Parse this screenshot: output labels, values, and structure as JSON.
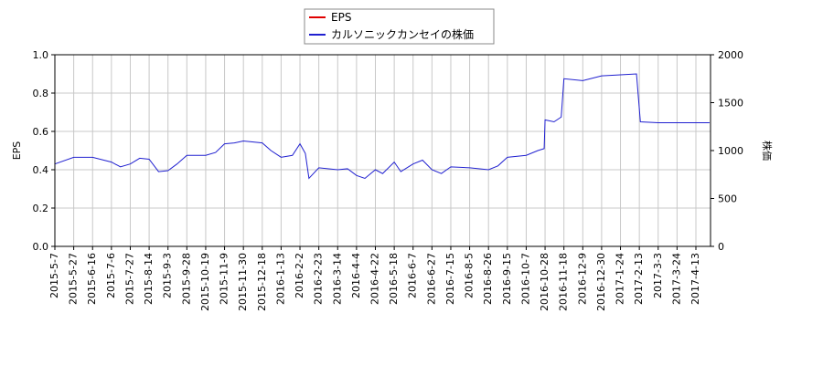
{
  "chart_data": {
    "type": "line",
    "x": [
      "2015-5-7",
      "2015-5-27",
      "2015-6-16",
      "2015-7-6",
      "2015-7-16",
      "2015-7-27",
      "2015-8-5",
      "2015-8-14",
      "2015-8-24",
      "2015-9-3",
      "2015-9-15",
      "2015-9-28",
      "2015-10-19",
      "2015-10-30",
      "2015-11-9",
      "2015-11-20",
      "2015-11-30",
      "2015-12-18",
      "2015-12-30",
      "2016-1-13",
      "2016-1-25",
      "2016-2-2",
      "2016-2-8",
      "2016-2-12",
      "2016-2-23",
      "2016-3-14",
      "2016-3-25",
      "2016-4-4",
      "2016-4-12",
      "2016-4-22",
      "2016-5-2",
      "2016-5-18",
      "2016-5-25",
      "2016-6-7",
      "2016-6-17",
      "2016-6-27",
      "2016-7-6",
      "2016-7-15",
      "2016-8-5",
      "2016-8-26",
      "2016-9-5",
      "2016-9-15",
      "2016-10-7",
      "2016-10-20",
      "2016-10-27",
      "2016-10-28",
      "2016-11-7",
      "2016-11-15",
      "2016-11-18",
      "2016-12-9",
      "2016-12-30",
      "2017-1-24",
      "2017-2-10",
      "2017-2-14",
      "2017-3-3",
      "2017-3-24",
      "2017-4-13",
      "2017-4-27"
    ],
    "series": [
      {
        "name": "EPS",
        "color": "#e00000",
        "values": [
          null,
          null,
          null,
          null,
          null,
          null,
          null,
          null,
          null,
          null,
          null,
          null,
          null,
          null,
          null,
          null,
          null,
          null,
          null,
          null,
          null,
          null,
          null,
          null,
          null,
          null,
          null,
          null,
          null,
          null,
          null,
          null,
          null,
          null,
          null,
          null,
          null,
          null,
          null,
          null,
          null,
          null,
          null,
          null,
          null,
          null,
          null,
          null,
          null,
          null,
          null,
          null,
          null,
          null,
          null,
          null,
          null,
          null
        ]
      },
      {
        "name": "カルソニックカンセイの株価",
        "color": "#2020d0",
        "axis": "y2",
        "values": [
          860,
          930,
          930,
          880,
          830,
          860,
          920,
          910,
          780,
          790,
          860,
          950,
          950,
          980,
          1070,
          1080,
          1100,
          1080,
          1000,
          930,
          950,
          1070,
          970,
          710,
          820,
          800,
          810,
          740,
          710,
          800,
          760,
          880,
          780,
          860,
          900,
          800,
          760,
          830,
          820,
          800,
          840,
          930,
          950,
          1000,
          1020,
          1320,
          1300,
          1350,
          1750,
          1730,
          1780,
          1790,
          1800,
          1300,
          1290,
          1290,
          1290,
          1290
        ]
      }
    ],
    "xlim": [
      "2015-5-7",
      "2017-4-28"
    ],
    "xticks": [
      "2015-5-7",
      "2015-5-27",
      "2015-6-16",
      "2015-7-6",
      "2015-7-27",
      "2015-8-14",
      "2015-9-3",
      "2015-9-28",
      "2015-10-19",
      "2015-11-9",
      "2015-11-30",
      "2015-12-18",
      "2016-1-13",
      "2016-2-2",
      "2016-2-23",
      "2016-3-14",
      "2016-4-4",
      "2016-4-22",
      "2016-5-18",
      "2016-6-7",
      "2016-6-27",
      "2016-7-15",
      "2016-8-5",
      "2016-8-26",
      "2016-9-15",
      "2016-10-7",
      "2016-10-28",
      "2016-11-18",
      "2016-12-9",
      "2016-12-30",
      "2017-1-24",
      "2017-2-13",
      "2017-3-3",
      "2017-3-24",
      "2017-4-13"
    ],
    "ylim": [
      0,
      1
    ],
    "yticks": [
      {
        "value": 0,
        "label": "0.0"
      },
      0.2,
      0.4,
      0.6,
      0.8,
      {
        "value": 1,
        "label": "1.0"
      }
    ],
    "y2lim": [
      0,
      2000
    ],
    "y2ticks": [
      0,
      500,
      1000,
      1500,
      2000
    ],
    "ylabel": "EPS",
    "y2label": "株価",
    "grid": true
  }
}
